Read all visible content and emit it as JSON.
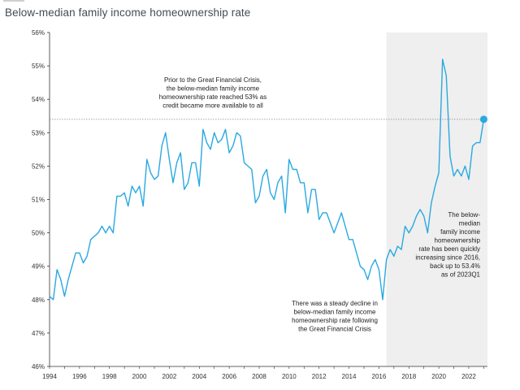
{
  "chart_data": {
    "type": "line",
    "title": "Below-median family income homeownership rate",
    "xlabel": "",
    "ylabel": "",
    "xlim": [
      1994,
      2023.25
    ],
    "ylim": [
      46,
      56
    ],
    "y_ticks": [
      "46%",
      "47%",
      "48%",
      "49%",
      "50%",
      "51%",
      "52%",
      "53%",
      "54%",
      "55%",
      "56%"
    ],
    "y_tick_values": [
      46,
      47,
      48,
      49,
      50,
      51,
      52,
      53,
      54,
      55,
      56
    ],
    "x_ticks": [
      "1994",
      "1996",
      "1998",
      "2000",
      "2002",
      "2004",
      "2006",
      "2008",
      "2010",
      "2012",
      "2014",
      "2016",
      "2018",
      "2020",
      "2022"
    ],
    "x_tick_values": [
      1994,
      1996,
      1998,
      2000,
      2002,
      2004,
      2006,
      2008,
      2010,
      2012,
      2014,
      2016,
      2018,
      2020,
      2022
    ],
    "reference_line": 53.4,
    "shaded_from": 2016.5,
    "line_color": "#29a9e0",
    "shade_color": "#efefef",
    "series": [
      {
        "name": "",
        "x": [
          1994.0,
          1994.25,
          1994.5,
          1994.75,
          1995.0,
          1995.25,
          1995.5,
          1995.75,
          1996.0,
          1996.25,
          1996.5,
          1996.75,
          1997.0,
          1997.25,
          1997.5,
          1997.75,
          1998.0,
          1998.25,
          1998.5,
          1998.75,
          1999.0,
          1999.25,
          1999.5,
          1999.75,
          2000.0,
          2000.25,
          2000.5,
          2000.75,
          2001.0,
          2001.25,
          2001.5,
          2001.75,
          2002.0,
          2002.25,
          2002.5,
          2002.75,
          2003.0,
          2003.25,
          2003.5,
          2003.75,
          2004.0,
          2004.25,
          2004.5,
          2004.75,
          2005.0,
          2005.25,
          2005.5,
          2005.75,
          2006.0,
          2006.25,
          2006.5,
          2006.75,
          2007.0,
          2007.25,
          2007.5,
          2007.75,
          2008.0,
          2008.25,
          2008.5,
          2008.75,
          2009.0,
          2009.25,
          2009.5,
          2009.75,
          2010.0,
          2010.25,
          2010.5,
          2010.75,
          2011.0,
          2011.25,
          2011.5,
          2011.75,
          2012.0,
          2012.25,
          2012.5,
          2012.75,
          2013.0,
          2013.25,
          2013.5,
          2013.75,
          2014.0,
          2014.25,
          2014.5,
          2014.75,
          2015.0,
          2015.25,
          2015.5,
          2015.75,
          2016.0,
          2016.25,
          2016.5,
          2016.75,
          2017.0,
          2017.25,
          2017.5,
          2017.75,
          2018.0,
          2018.25,
          2018.5,
          2018.75,
          2019.0,
          2019.25,
          2019.5,
          2019.75,
          2020.0,
          2020.25,
          2020.5,
          2020.75,
          2021.0,
          2021.25,
          2021.5,
          2021.75,
          2022.0,
          2022.25,
          2022.5,
          2022.75,
          2023.0
        ],
        "y": [
          48.1,
          48.0,
          48.9,
          48.6,
          48.1,
          48.6,
          49.0,
          49.4,
          49.4,
          49.1,
          49.3,
          49.8,
          49.9,
          50.0,
          50.2,
          50.0,
          50.2,
          50.0,
          51.1,
          51.1,
          51.2,
          50.8,
          51.4,
          51.2,
          51.4,
          50.8,
          52.2,
          51.8,
          51.6,
          51.7,
          52.6,
          53.0,
          52.2,
          51.5,
          52.1,
          52.4,
          51.3,
          51.5,
          52.1,
          52.1,
          51.4,
          53.1,
          52.7,
          52.5,
          53.0,
          52.7,
          52.8,
          53.1,
          52.4,
          52.6,
          53.0,
          52.9,
          52.1,
          52.0,
          51.9,
          50.9,
          51.1,
          51.7,
          51.9,
          51.2,
          51.0,
          51.5,
          51.7,
          50.6,
          52.2,
          51.9,
          51.9,
          51.5,
          51.5,
          50.6,
          51.3,
          51.3,
          50.4,
          50.6,
          50.6,
          50.3,
          50.0,
          50.3,
          50.6,
          50.2,
          49.8,
          49.8,
          49.4,
          49.0,
          48.9,
          48.6,
          49.0,
          49.2,
          48.9,
          48.0,
          49.2,
          49.5,
          49.3,
          49.6,
          49.5,
          50.2,
          50.0,
          50.2,
          50.5,
          50.7,
          50.5,
          50.0,
          50.9,
          51.4,
          51.8,
          55.2,
          54.7,
          52.3,
          51.7,
          51.9,
          51.7,
          52.0,
          51.6,
          52.6,
          52.7,
          52.7,
          53.4
        ]
      }
    ],
    "annotations": [
      {
        "lines": [
          "Prior to the Great Financial Crisis,",
          "the below-median family income",
          "homeownership rate reached 53% as",
          "credit became more available to all"
        ]
      },
      {
        "lines": [
          "There was a steady decline in",
          "below-median family income",
          "homeownership rate following",
          "the Great Financial Crisis"
        ]
      },
      {
        "lines": [
          "The below-",
          "median",
          "family income",
          "homeownership",
          "rate has been quickly",
          "increasing since 2016,",
          "back up to 53.4%",
          "as of 2023Q1"
        ]
      }
    ]
  }
}
